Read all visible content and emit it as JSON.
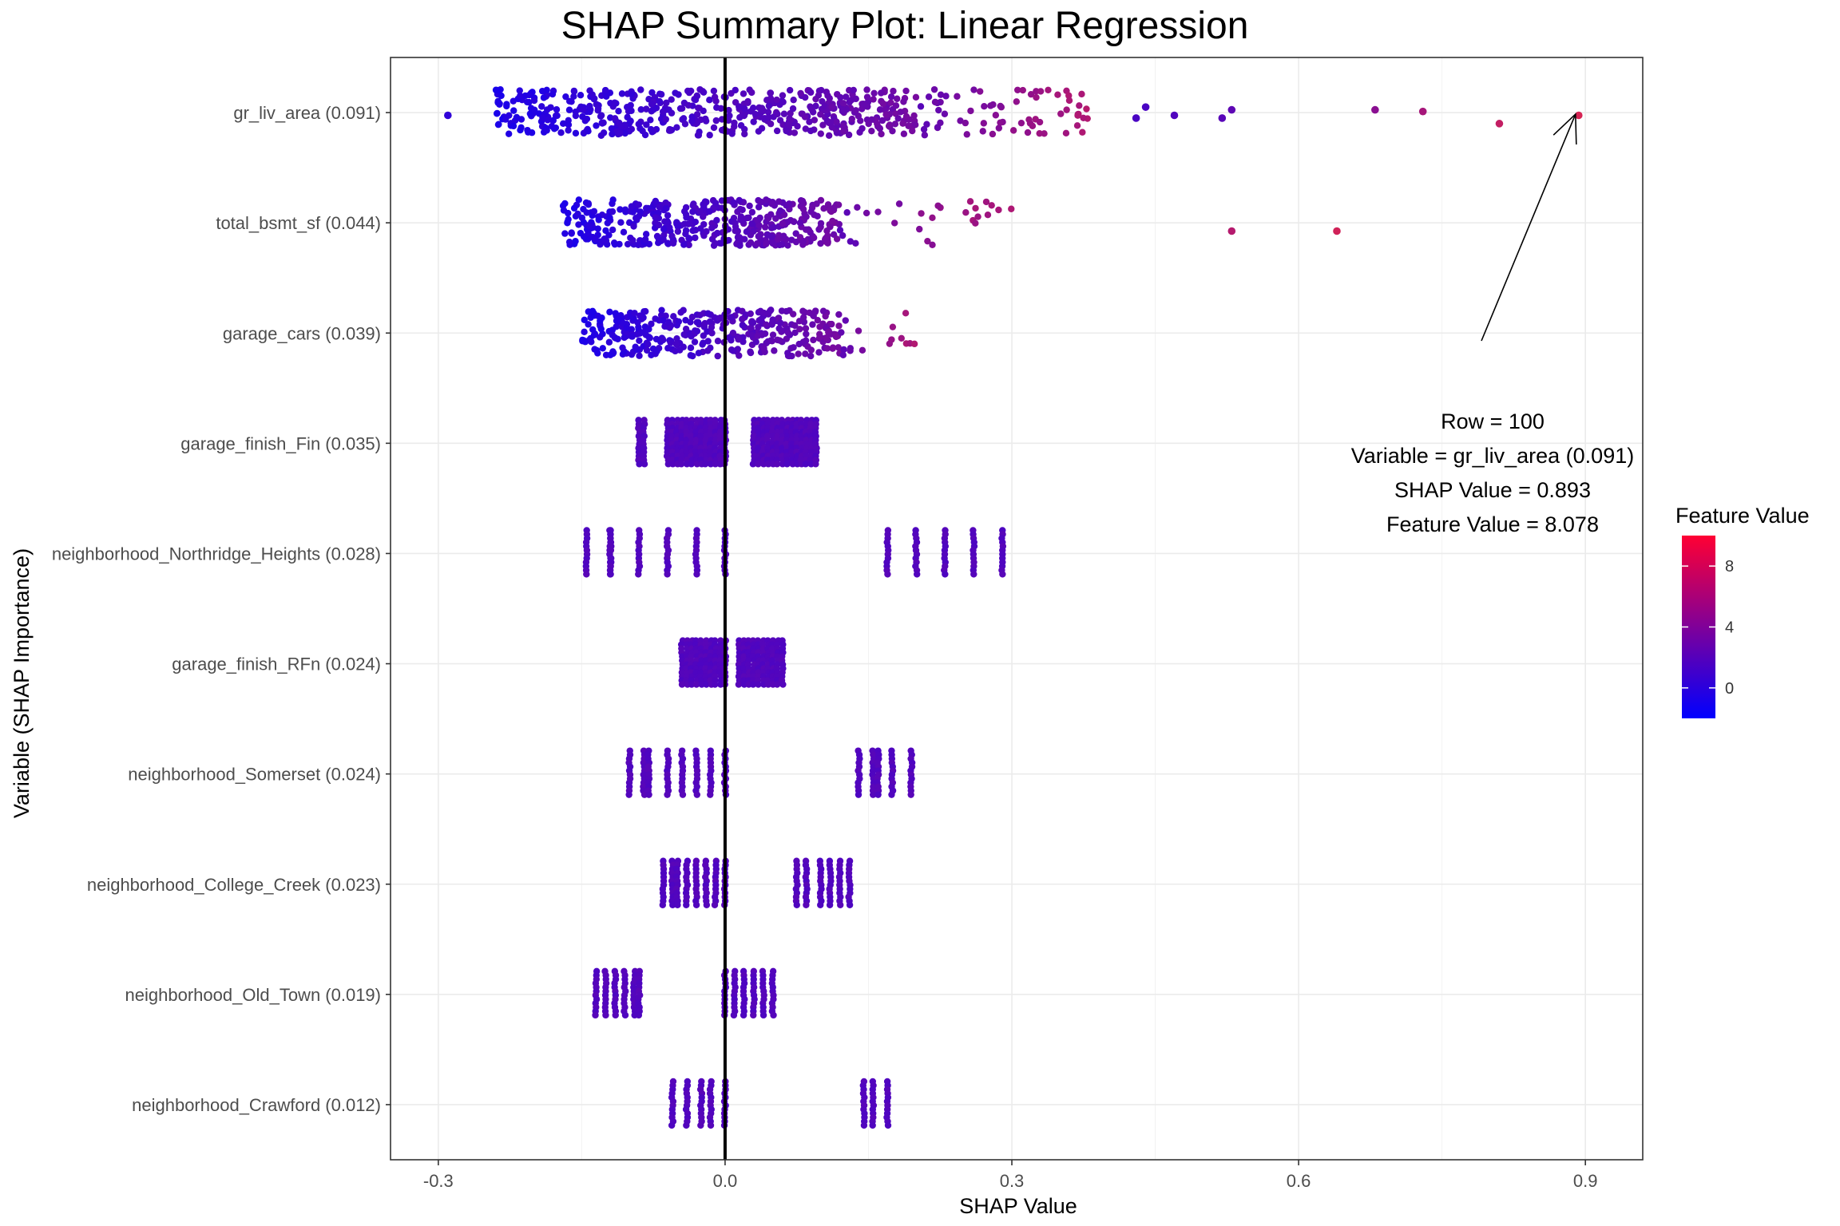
{
  "chart_data": {
    "type": "scatter",
    "subtype": "shap-summary-jitter",
    "title": "SHAP Summary Plot: Linear Regression",
    "xlabel": "SHAP Value",
    "ylabel": "Variable (SHAP Importance)",
    "xlim": [
      -0.35,
      0.96
    ],
    "xticks": [
      -0.3,
      0.0,
      0.3,
      0.6,
      0.9
    ],
    "xtick_labels": [
      "-0.3",
      "0.0",
      "0.3",
      "0.6",
      "0.9"
    ],
    "grid": true,
    "zero_line": 0,
    "variables": [
      {
        "label": "gr_liv_area (0.091)",
        "ranges": [
          [
            -0.24,
            0.2,
            520
          ],
          [
            0.2,
            0.38,
            70
          ]
        ],
        "outliers": [
          [
            -0.29,
            0.05,
            0.3
          ],
          [
            0.43,
            0.1,
            1.5
          ],
          [
            0.44,
            -0.1,
            1.5
          ],
          [
            0.47,
            0.05,
            1.8
          ],
          [
            0.52,
            0.1,
            2.2
          ],
          [
            0.53,
            -0.05,
            2.4
          ],
          [
            0.68,
            -0.05,
            4.5
          ],
          [
            0.73,
            -0.02,
            5.8
          ],
          [
            0.81,
            0.2,
            7.2
          ],
          [
            0.893,
            0.05,
            8.078
          ]
        ]
      },
      {
        "label": "total_bsmt_sf (0.044)",
        "ranges": [
          [
            -0.17,
            0.12,
            420
          ],
          [
            0.12,
            0.3,
            28
          ]
        ],
        "outliers": [
          [
            0.53,
            0.15,
            6.5
          ],
          [
            0.64,
            0.15,
            7.8
          ]
        ]
      },
      {
        "label": "garage_cars (0.039)",
        "ranges": [
          [
            -0.15,
            0.12,
            360
          ],
          [
            0.12,
            0.2,
            16
          ]
        ],
        "outliers": []
      },
      {
        "label": "garage_finish_Fin (0.035)",
        "columns": [
          -0.09,
          -0.085,
          -0.06,
          -0.055,
          -0.05,
          -0.045,
          -0.04,
          -0.035,
          -0.03,
          -0.025,
          -0.02,
          -0.015,
          -0.01,
          -0.005,
          0.0,
          0.03,
          0.035,
          0.04,
          0.045,
          0.05,
          0.055,
          0.06,
          0.065,
          0.07,
          0.075,
          0.08,
          0.085,
          0.09,
          0.095
        ]
      },
      {
        "label": "neighborhood_Northridge_Heights (0.028)",
        "columns": [
          -0.145,
          -0.12,
          -0.12,
          -0.09,
          -0.06,
          -0.03,
          0.0,
          0.17,
          0.2,
          0.23,
          0.26,
          0.29
        ]
      },
      {
        "label": "garage_finish_RFn (0.024)",
        "columns": [
          -0.045,
          -0.04,
          -0.035,
          -0.03,
          -0.025,
          -0.02,
          -0.015,
          -0.01,
          -0.005,
          0.0,
          0.015,
          0.02,
          0.025,
          0.03,
          0.035,
          0.04,
          0.045,
          0.05,
          0.055,
          0.06
        ]
      },
      {
        "label": "neighborhood_Somerset (0.024)",
        "columns": [
          -0.1,
          -0.085,
          -0.08,
          -0.06,
          -0.045,
          -0.03,
          -0.015,
          0.0,
          0.14,
          0.155,
          0.16,
          0.175,
          0.195
        ]
      },
      {
        "label": "neighborhood_College_Creek (0.023)",
        "columns": [
          -0.065,
          -0.055,
          -0.05,
          -0.04,
          -0.03,
          -0.02,
          -0.01,
          0.0,
          0.075,
          0.085,
          0.1,
          0.11,
          0.12,
          0.13
        ]
      },
      {
        "label": "neighborhood_Old_Town (0.019)",
        "columns": [
          -0.135,
          -0.125,
          -0.115,
          -0.105,
          -0.095,
          -0.09,
          0.0,
          0.01,
          0.02,
          0.03,
          0.04,
          0.05
        ]
      },
      {
        "label": "neighborhood_Crawford (0.012)",
        "columns": [
          -0.055,
          -0.04,
          -0.025,
          -0.015,
          0.0,
          0.145,
          0.155,
          0.17
        ]
      }
    ],
    "annotation": {
      "lines": [
        "Row = 100",
        "Variable = gr_liv_area (0.091)",
        "SHAP Value = 0.893",
        "Feature Value = 8.078"
      ],
      "point": [
        0.893,
        "gr_liv_area (0.091)"
      ]
    },
    "legend": {
      "title": "Feature Value",
      "placement": "right",
      "colormap": [
        "#0000ff",
        "#ff0033"
      ],
      "range": [
        -2,
        10
      ],
      "ticks": [
        0,
        4,
        8
      ],
      "tick_labels": [
        "0",
        "4",
        "8"
      ]
    }
  }
}
